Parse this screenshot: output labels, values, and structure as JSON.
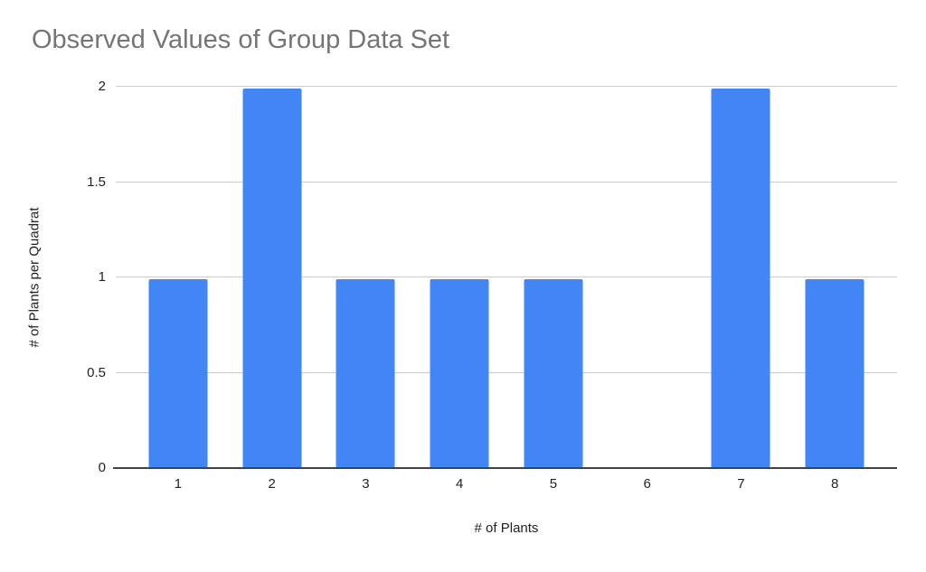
{
  "chart_data": {
    "type": "bar",
    "title": "Observed Values of Group Data Set",
    "xlabel": "# of Plants",
    "ylabel": "# of Plants per Quadrat",
    "categories": [
      "1",
      "2",
      "3",
      "4",
      "5",
      "6",
      "7",
      "8"
    ],
    "values": [
      1,
      2,
      1,
      1,
      1,
      0,
      2,
      1
    ],
    "ylim": [
      0,
      2
    ],
    "yticks": [
      0,
      0.5,
      1,
      1.5,
      2
    ],
    "ytick_labels": [
      "0",
      "0.5",
      "1",
      "1.5",
      "2"
    ],
    "grid": true,
    "legend_position": "none",
    "colors": {
      "bar": "#4285f4",
      "gridline": "#cccccc",
      "baseline": "#424242",
      "title": "#757575",
      "tick": "#222222",
      "axis_title": "#222222",
      "background": "#ffffff"
    }
  }
}
